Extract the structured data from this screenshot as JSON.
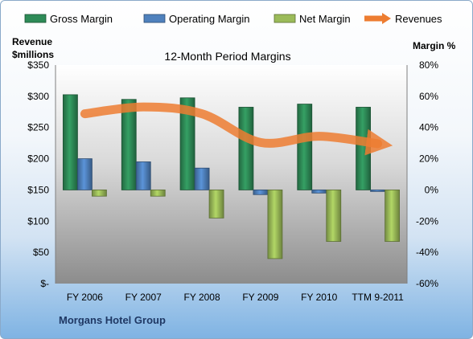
{
  "chart_data": {
    "type": "bar",
    "title": "12-Month Period Margins",
    "company": "Morgans Hotel Group",
    "left_axis": {
      "title_lines": [
        "Revenue",
        "$millions"
      ],
      "ticks": [
        "$-",
        "$50",
        "$100",
        "$150",
        "$200",
        "$250",
        "$300",
        "$350"
      ],
      "ylim": [
        0,
        350
      ]
    },
    "right_axis": {
      "title": "Margin %",
      "ticks": [
        "-60%",
        "-40%",
        "-20%",
        "0%",
        "20%",
        "40%",
        "60%",
        "80%"
      ],
      "ylim": [
        -60,
        80
      ]
    },
    "categories": [
      "FY 2006",
      "FY 2007",
      "FY 2008",
      "FY 2009",
      "FY 2010",
      "TTM 9-2011"
    ],
    "series": [
      {
        "name": "Gross Margin",
        "axis": "right",
        "color": "#2e8b57",
        "values": [
          61,
          58,
          59,
          53,
          55,
          53
        ]
      },
      {
        "name": "Operating Margin",
        "axis": "right",
        "color": "#4f81bd",
        "values": [
          20,
          18,
          14,
          -3,
          -2,
          -1
        ]
      },
      {
        "name": "Net Margin",
        "axis": "right",
        "color": "#9bbb59",
        "values": [
          -4,
          -4,
          -18,
          -44,
          -33,
          -33
        ]
      },
      {
        "name": "Revenues",
        "axis": "left",
        "color": "#ed7d31",
        "type": "line",
        "values": [
          272,
          283,
          272,
          226,
          236,
          224
        ]
      }
    ],
    "legend_position": "top",
    "grid": false
  }
}
